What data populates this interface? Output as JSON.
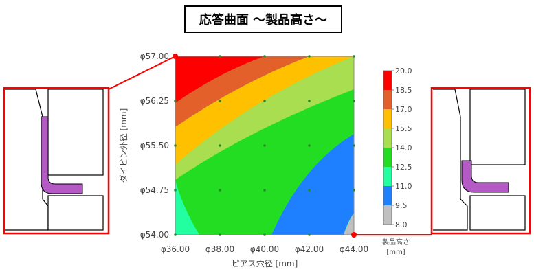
{
  "title": "応答曲面 〜製品高さ〜",
  "chart_data": {
    "type": "heatmap",
    "title": "応答曲面 〜製品高さ〜",
    "xlabel": "ピアス穴径 [mm]",
    "ylabel": "ダイピン外径 [mm]",
    "x_ticks": [
      "φ36.00",
      "φ38.00",
      "φ40.00",
      "φ42.00",
      "φ44.00"
    ],
    "y_ticks": [
      "φ57.00",
      "φ56.25",
      "φ55.50",
      "φ54.75",
      "φ54.00"
    ],
    "xlim": [
      36,
      44
    ],
    "ylim": [
      54,
      57
    ],
    "grid_points_x": [
      36,
      38,
      40,
      42,
      44
    ],
    "grid_points_y": [
      54,
      54.75,
      55.5,
      56.25,
      57
    ],
    "colorbar_label": "製品高さ\n[mm]",
    "colorbar_label_lines": [
      "製品高さ",
      "[mm]"
    ],
    "levels": [
      "20.0",
      "18.5",
      "17.0",
      "15.5",
      "14.0",
      "12.5",
      "11.0",
      "9.5",
      "8.0"
    ],
    "level_values": [
      20.0,
      18.5,
      17.0,
      15.5,
      14.0,
      12.5,
      11.0,
      9.5,
      8.0
    ],
    "level_colors": [
      "#ff0000",
      "#e4602a",
      "#ffc000",
      "#a8de50",
      "#22dd22",
      "#22ffa0",
      "#1e7fff",
      "#c0c0c0"
    ],
    "highlighted_points": [
      {
        "x": 36,
        "y": 57
      },
      {
        "x": 44,
        "y": 54
      }
    ]
  }
}
